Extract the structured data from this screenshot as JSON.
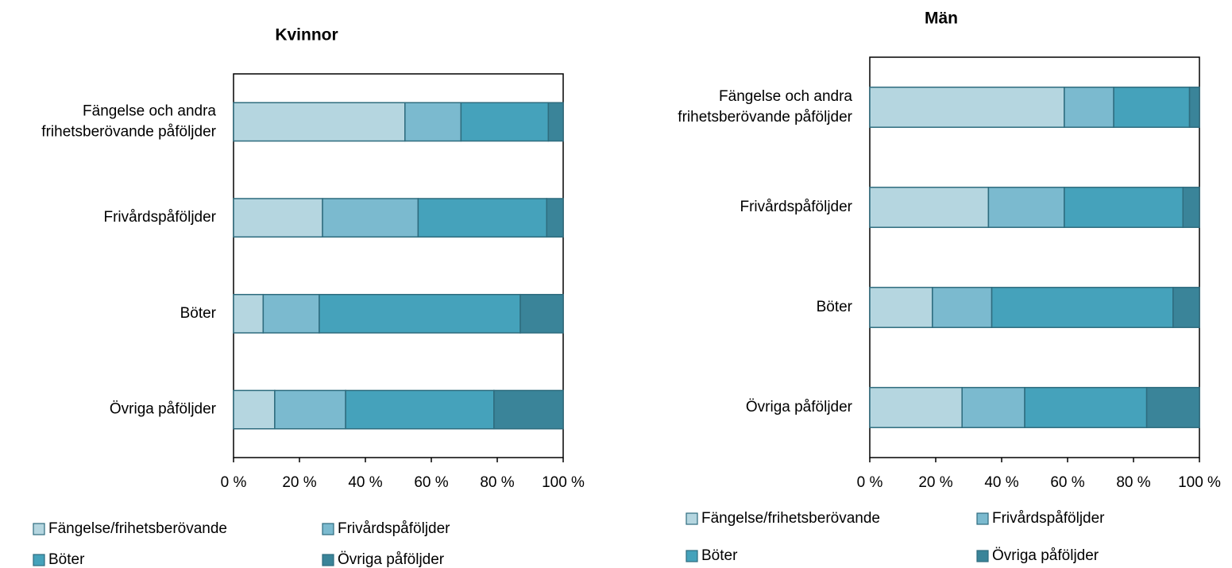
{
  "chart_data": [
    {
      "type": "stacked-bar-horizontal",
      "title": "Kvinnor",
      "categories": [
        "Fängelse och andra\nfrihetsberövande påföljder",
        "Frivårdspåföljder",
        "Böter",
        "Övriga påföljder"
      ],
      "series": [
        {
          "name": "Fängelse/frihetsberövande",
          "color": "#b5d6e0",
          "values": [
            52,
            27,
            9,
            12.5
          ]
        },
        {
          "name": "Frivårdspåföljder",
          "color": "#7bbacf",
          "values": [
            17,
            29,
            17,
            21.5
          ]
        },
        {
          "name": "Böter",
          "color": "#45a2bb",
          "values": [
            26.5,
            39,
            61,
            45
          ]
        },
        {
          "name": "Övriga påföljder",
          "color": "#3a8499",
          "values": [
            4.5,
            5,
            13,
            21
          ]
        }
      ],
      "xlim": [
        0,
        100
      ],
      "xticks": [
        {
          "value": 0,
          "label": "0 %"
        },
        {
          "value": 20,
          "label": "20 %"
        },
        {
          "value": 40,
          "label": "40 %"
        },
        {
          "value": 60,
          "label": "60 %"
        },
        {
          "value": 80,
          "label": "80 %"
        },
        {
          "value": 100,
          "label": "100 %"
        }
      ]
    },
    {
      "type": "stacked-bar-horizontal",
      "title": "Män",
      "categories": [
        "Fängelse och andra\nfrihetsberövande påföljder",
        "Frivårdspåföljder",
        "Böter",
        "Övriga påföljder"
      ],
      "series": [
        {
          "name": "Fängelse/frihetsberövande",
          "color": "#b5d6e0",
          "values": [
            59,
            36,
            19,
            28
          ]
        },
        {
          "name": "Frivårdspåföljder",
          "color": "#7bbacf",
          "values": [
            15,
            23,
            18,
            19
          ]
        },
        {
          "name": "Böter",
          "color": "#45a2bb",
          "values": [
            23,
            36,
            55,
            37
          ]
        },
        {
          "name": "Övriga påföljder",
          "color": "#3a8499",
          "values": [
            3,
            5,
            8,
            16
          ]
        }
      ],
      "xlim": [
        0,
        100
      ],
      "xticks": [
        {
          "value": 0,
          "label": "0 %"
        },
        {
          "value": 20,
          "label": "20 %"
        },
        {
          "value": 40,
          "label": "40 %"
        },
        {
          "value": 60,
          "label": "60 %"
        },
        {
          "value": 80,
          "label": "80 %"
        },
        {
          "value": 100,
          "label": "100 %"
        }
      ]
    }
  ]
}
